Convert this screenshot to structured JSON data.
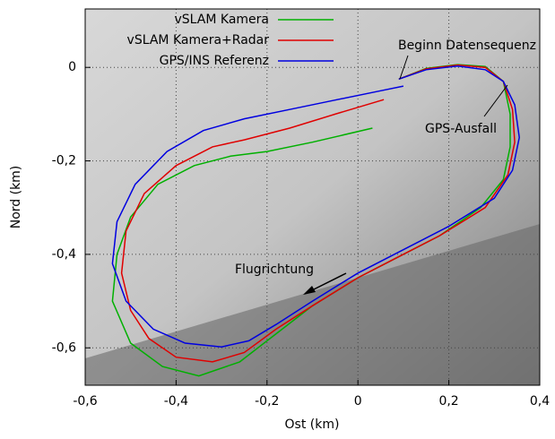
{
  "chart_data": {
    "type": "line",
    "xlabel": "Ost (km)",
    "ylabel": "Nord (km)",
    "xlim": [
      -0.6,
      0.4
    ],
    "ylim": [
      -0.68,
      0.125
    ],
    "xticks": [
      {
        "value": -0.6,
        "label": "-0,6"
      },
      {
        "value": -0.4,
        "label": "-0,4"
      },
      {
        "value": -0.2,
        "label": "-0,2"
      },
      0,
      {
        "value": 0.2,
        "label": "0,2"
      },
      {
        "value": 0.4,
        "label": "0,4"
      }
    ],
    "yticks": [
      {
        "value": -0.6,
        "label": "-0,6"
      },
      {
        "value": -0.4,
        "label": "-0,4"
      },
      {
        "value": -0.2,
        "label": "-0,2"
      },
      0
    ],
    "grid": true,
    "legend": "upper left",
    "annotations": [
      "Beginn Datensequenz",
      "GPS-Ausfall",
      "Flugrichtung"
    ],
    "series": [
      {
        "name": "vSLAM Kamera",
        "color": "#00b000",
        "x": [
          0.09,
          0.15,
          0.22,
          0.28,
          0.32,
          0.335,
          0.335,
          0.32,
          0.27,
          0.18,
          0.08,
          0,
          -0.1,
          -0.18,
          -0.26,
          -0.35,
          -0.43,
          -0.5,
          -0.54,
          -0.53,
          -0.5,
          -0.44,
          -0.36,
          -0.28,
          -0.2,
          -0.1,
          0.032
        ],
        "values": [
          -0.025,
          -0.002,
          0.006,
          0.002,
          -0.03,
          -0.1,
          -0.17,
          -0.24,
          -0.3,
          -0.36,
          -0.41,
          -0.45,
          -0.51,
          -0.57,
          -0.63,
          -0.66,
          -0.64,
          -0.59,
          -0.5,
          -0.4,
          -0.32,
          -0.25,
          -0.21,
          -0.19,
          -0.18,
          -0.16,
          -0.13
        ]
      },
      {
        "name": "vSLAM Kamera+Radar",
        "color": "#e00000",
        "x": [
          0.09,
          0.15,
          0.22,
          0.28,
          0.32,
          0.34,
          0.345,
          0.33,
          0.28,
          0.18,
          0.08,
          0,
          -0.1,
          -0.18,
          -0.25,
          -0.32,
          -0.4,
          -0.46,
          -0.5,
          -0.52,
          -0.51,
          -0.47,
          -0.4,
          -0.32,
          -0.25,
          -0.15,
          -0.05,
          0.057
        ],
        "values": [
          -0.025,
          -0.003,
          0.005,
          0,
          -0.03,
          -0.09,
          -0.16,
          -0.23,
          -0.3,
          -0.36,
          -0.41,
          -0.45,
          -0.51,
          -0.56,
          -0.61,
          -0.63,
          -0.62,
          -0.58,
          -0.52,
          -0.44,
          -0.35,
          -0.27,
          -0.21,
          -0.17,
          -0.155,
          -0.13,
          -0.1,
          -0.069
        ]
      },
      {
        "name": "GPS/INS Referenz",
        "color": "#0000e0",
        "x": [
          0.09,
          0.15,
          0.22,
          0.28,
          0.32,
          0.345,
          0.355,
          0.34,
          0.3,
          0.2,
          0.1,
          0,
          -0.1,
          -0.18,
          -0.24,
          -0.3,
          -0.38,
          -0.45,
          -0.51,
          -0.54,
          -0.53,
          -0.49,
          -0.42,
          -0.34,
          -0.25,
          -0.15,
          -0.05,
          0.05,
          0.1
        ],
        "values": [
          -0.025,
          -0.005,
          0.003,
          -0.005,
          -0.03,
          -0.08,
          -0.15,
          -0.22,
          -0.28,
          -0.34,
          -0.39,
          -0.44,
          -0.5,
          -0.55,
          -0.585,
          -0.598,
          -0.59,
          -0.56,
          -0.5,
          -0.42,
          -0.33,
          -0.25,
          -0.18,
          -0.135,
          -0.11,
          -0.09,
          -0.07,
          -0.05,
          -0.04
        ]
      }
    ]
  }
}
